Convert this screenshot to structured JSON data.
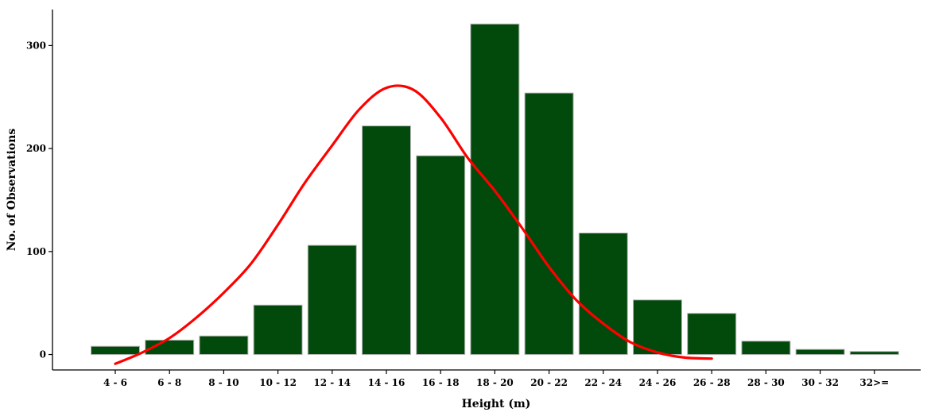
{
  "chart_data": {
    "type": "bar",
    "title": "",
    "xlabel": "Height (m)",
    "ylabel": "No. of Observations",
    "categories": [
      "4 - 6",
      "6 - 8",
      "8 - 10",
      "10 - 12",
      "12 - 14",
      "14 - 16",
      "16 - 18",
      "18 - 20",
      "20 - 22",
      "22 - 24",
      "24 - 26",
      "26 - 28",
      "28 - 30",
      "30 - 32",
      "32>="
    ],
    "values": [
      8,
      14,
      18,
      48,
      106,
      222,
      193,
      321,
      254,
      118,
      53,
      40,
      13,
      5,
      3
    ],
    "smooth_curve": [
      -9,
      2,
      16,
      36,
      60,
      88,
      126,
      167,
      203,
      238,
      259,
      257,
      230,
      191,
      159,
      123,
      85,
      53,
      30,
      12,
      2,
      -3,
      -4
    ],
    "yticks": [
      0,
      100,
      200,
      300
    ],
    "ylim": [
      -15,
      335
    ],
    "grid": false,
    "legend": "none",
    "bar_color": "#024a0c",
    "bar_edge_color": "#b8b8b8",
    "curve_color": "#ff0000"
  }
}
